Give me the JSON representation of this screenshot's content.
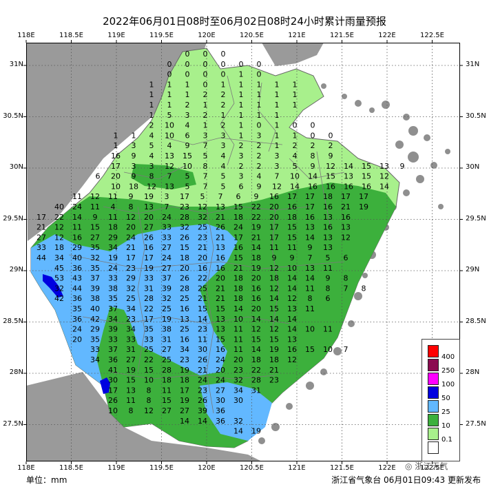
{
  "title": "2022年06月01日08时至06月02日08时24小时累计雨量预报",
  "lon_labels": [
    "118E",
    "118.5E",
    "119E",
    "119.5E",
    "120E",
    "120.5E",
    "121E",
    "121.5E",
    "122E",
    "122.5E"
  ],
  "lat_labels": [
    "31N",
    "30.5N",
    "30N",
    "29.5N",
    "29N",
    "28.5N",
    "28N",
    "27.5N"
  ],
  "legend": [
    {
      "label": "400",
      "color": "#ff0000"
    },
    {
      "label": "250",
      "color": "#8b0a50"
    },
    {
      "label": "100",
      "color": "#ff00ff"
    },
    {
      "label": "50",
      "color": "#0000e0"
    },
    {
      "label": "25",
      "color": "#62b8ff"
    },
    {
      "label": "10",
      "color": "#3cb03c"
    },
    {
      "label": "0.1",
      "color": "#a8f08c"
    },
    {
      "label": "",
      "color": "#ffffff"
    }
  ],
  "unit_label": "单位：mm",
  "footer": "浙江省气象台 06月01日09:43 更新发布",
  "watermark": "浙江天气",
  "station_values": [
    [
      "0",
      "0",
      "0"
    ],
    [
      "0",
      "0",
      "0",
      "0",
      "0",
      "0"
    ],
    [
      "0",
      "0",
      "0",
      "0",
      "1",
      "0"
    ],
    [
      "1",
      "1",
      "1",
      "0",
      "1",
      "1",
      "1",
      "1",
      "1"
    ],
    [
      "1",
      "1",
      "1",
      "2",
      "2",
      "1",
      "1",
      "1",
      "1"
    ],
    [
      "1",
      "1",
      "2",
      "1",
      "2",
      "1",
      "1",
      "1",
      "1"
    ],
    [
      "1",
      "5",
      "3",
      "2",
      "1",
      "1",
      "1",
      "1"
    ],
    [
      "2",
      "10",
      "4",
      "1",
      "2",
      "1",
      "0",
      "1",
      "0",
      "0"
    ],
    [
      "1",
      "1",
      "4",
      "10",
      "6",
      "3",
      "3",
      "1",
      "3",
      "1",
      "1",
      "0",
      "0"
    ],
    [
      "1",
      "3",
      "5",
      "4",
      "9",
      "7",
      "3",
      "2",
      "2",
      "1",
      "2",
      "2",
      "2"
    ],
    [
      "16",
      "9",
      "4",
      "13",
      "15",
      "5",
      "4",
      "3",
      "2",
      "3",
      "4",
      "8",
      "9"
    ],
    [
      "17",
      "3",
      "3",
      "12",
      "10",
      "8",
      "4",
      "2",
      "2",
      "3",
      "5",
      "9",
      "12",
      "14",
      "15",
      "13",
      "9"
    ],
    [
      "6",
      "20",
      "9",
      "8",
      "7",
      "5",
      "7",
      "5",
      "3",
      "4",
      "7",
      "10",
      "14",
      "15",
      "13",
      "15",
      "12"
    ],
    [
      "10",
      "18",
      "12",
      "13",
      "5",
      "7",
      "5",
      "6",
      "9",
      "12",
      "14",
      "16",
      "16",
      "16",
      "16",
      "14"
    ],
    [
      "11",
      "12",
      "11",
      "9",
      "19",
      "3",
      "17",
      "5",
      "7",
      "6",
      "9",
      "16",
      "17",
      "17",
      "18",
      "17",
      "17"
    ],
    [
      "40",
      "24",
      "11",
      "4",
      "8",
      "13",
      "7",
      "23",
      "12",
      "13",
      "15",
      "22",
      "20",
      "16",
      "17",
      "16",
      "21",
      "19"
    ],
    [
      "17",
      "22",
      "14",
      "9",
      "11",
      "12",
      "20",
      "24",
      "28",
      "32",
      "21",
      "18",
      "22",
      "20",
      "18",
      "16",
      "13",
      "16"
    ],
    [
      "21",
      "12",
      "11",
      "15",
      "18",
      "20",
      "27",
      "33",
      "32",
      "25",
      "26",
      "24",
      "19",
      "17",
      "15",
      "13",
      "16",
      "13"
    ],
    [
      "27",
      "12",
      "16",
      "27",
      "29",
      "24",
      "26",
      "33",
      "26",
      "23",
      "21",
      "17",
      "21",
      "17",
      "15",
      "14",
      "13",
      "12"
    ],
    [
      "33",
      "18",
      "29",
      "35",
      "34",
      "21",
      "16",
      "27",
      "15",
      "21",
      "13",
      "16",
      "14",
      "11",
      "11",
      "9",
      "13"
    ],
    [
      "44",
      "34",
      "40",
      "32",
      "19",
      "17",
      "17",
      "24",
      "18",
      "20",
      "16",
      "15",
      "18",
      "9",
      "9",
      "7",
      "5",
      "6"
    ],
    [
      "45",
      "36",
      "35",
      "24",
      "23",
      "19",
      "27",
      "20",
      "16",
      "16",
      "21",
      "19",
      "12",
      "10",
      "13",
      "11"
    ],
    [
      "53",
      "43",
      "37",
      "33",
      "29",
      "33",
      "37",
      "26",
      "22",
      "20",
      "18",
      "20",
      "18",
      "14",
      "14",
      "9",
      "8"
    ],
    [
      "32",
      "44",
      "39",
      "38",
      "32",
      "31",
      "39",
      "28",
      "25",
      "21",
      "18",
      "16",
      "12",
      "14",
      "11",
      "8",
      "7",
      "8"
    ],
    [
      "42",
      "36",
      "38",
      "35",
      "25",
      "28",
      "32",
      "25",
      "21",
      "21",
      "18",
      "16",
      "14",
      "12",
      "8",
      "6"
    ],
    [
      "35",
      "40",
      "37",
      "34",
      "22",
      "25",
      "16",
      "15",
      "15",
      "14",
      "20",
      "15",
      "13",
      "11"
    ],
    [
      "36",
      "42",
      "34",
      "23",
      "17",
      "19",
      "13",
      "14",
      "13",
      "10",
      "14",
      "14",
      "14"
    ],
    [
      "24",
      "29",
      "39",
      "34",
      "35",
      "38",
      "25",
      "23",
      "13",
      "11",
      "12",
      "12",
      "14",
      "10",
      "11"
    ],
    [
      "20",
      "35",
      "33",
      "33",
      "33",
      "31",
      "16",
      "11",
      "15",
      "11",
      "15",
      "15",
      "13"
    ],
    [
      "33",
      "37",
      "31",
      "25",
      "27",
      "34",
      "30",
      "16",
      "11",
      "14",
      "19",
      "16",
      "15",
      "10",
      "7"
    ],
    [
      "34",
      "36",
      "27",
      "22",
      "25",
      "23",
      "26",
      "24",
      "20",
      "18",
      "18",
      "12"
    ],
    [
      "41",
      "19",
      "15",
      "28",
      "19",
      "21",
      "20",
      "23",
      "22",
      "21"
    ],
    [
      "30",
      "15",
      "10",
      "18",
      "18",
      "24",
      "24",
      "32",
      "28",
      "23"
    ],
    [
      "17",
      "13",
      "8",
      "11",
      "17",
      "23",
      "27",
      "34",
      "31"
    ],
    [
      "26",
      "11",
      "8",
      "15",
      "19",
      "26",
      "30",
      "30"
    ],
    [
      "10",
      "8",
      "12",
      "27",
      "27",
      "39",
      "36"
    ],
    [
      "14",
      "14",
      "36",
      "32"
    ],
    [
      "14",
      "19"
    ]
  ]
}
